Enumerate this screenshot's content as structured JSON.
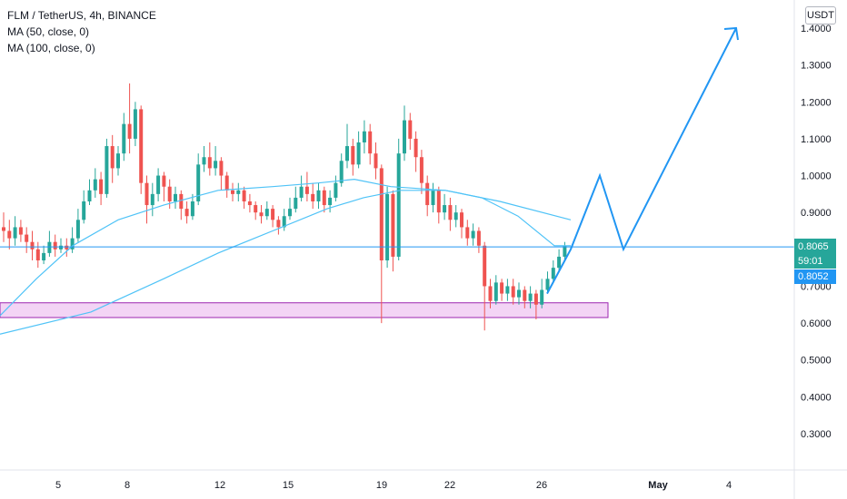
{
  "legend": {
    "symbol": "FLM / TetherUS, 4h, BINANCE",
    "ma50": "MA (50, close, 0)",
    "ma100": "MA (100, close, 0)"
  },
  "currency": "USDT",
  "price_axis": {
    "ticks": [
      "1.4000",
      "1.3000",
      "1.2000",
      "1.1000",
      "1.0000",
      "0.9000",
      "0.7000",
      "0.6000",
      "0.5000",
      "0.4000",
      "0.3000"
    ],
    "current_price": "0.8065",
    "countdown": "59:01",
    "ma_price": "0.8052"
  },
  "time_axis": {
    "ticks": [
      "5",
      "8",
      "12",
      "15",
      "19",
      "22",
      "26",
      "May",
      "4"
    ]
  },
  "colors": {
    "up": "#26a69a",
    "down": "#ef5350",
    "ma": "#4fc3f7",
    "hline": "#2196f3",
    "projection": "#2196f3",
    "zone_fill": "#f3d4f5",
    "zone_border": "#9c27b0",
    "tag_green": "#26a69a",
    "tag_blue": "#2196f3"
  },
  "chart_data": {
    "type": "candlestick",
    "xlabel": "",
    "ylabel": "",
    "ylim": [
      0.2,
      1.45
    ],
    "grid": false,
    "series": [
      {
        "name": "MA (50, close, 0)",
        "points": [
          [
            0,
            0.62
          ],
          [
            40,
            0.72
          ],
          [
            80,
            0.81
          ],
          [
            130,
            0.88
          ],
          [
            180,
            0.92
          ],
          [
            240,
            0.96
          ],
          [
            300,
            0.97
          ],
          [
            350,
            0.98
          ],
          [
            390,
            0.99
          ],
          [
            430,
            0.97
          ],
          [
            490,
            0.96
          ],
          [
            530,
            0.94
          ],
          [
            570,
            0.89
          ],
          [
            610,
            0.81
          ],
          [
            628,
            0.81
          ]
        ]
      },
      {
        "name": "MA (100, close, 0)",
        "points": [
          [
            0,
            0.57
          ],
          [
            100,
            0.63
          ],
          [
            180,
            0.72
          ],
          [
            240,
            0.79
          ],
          [
            300,
            0.85
          ],
          [
            360,
            0.91
          ],
          [
            400,
            0.94
          ],
          [
            440,
            0.96
          ],
          [
            490,
            0.96
          ],
          [
            550,
            0.93
          ],
          [
            628,
            0.88
          ]
        ]
      }
    ],
    "horizontal_line": 0.8065,
    "support_zone": [
      0.615,
      0.655
    ],
    "projection_path": [
      [
        602,
        0.68
      ],
      [
        628,
        0.8
      ],
      [
        660,
        1.0
      ],
      [
        686,
        0.8
      ],
      [
        810,
        1.4
      ]
    ],
    "candles": [
      [
        0.86,
        0.85,
        0.9,
        0.82
      ],
      [
        0.85,
        0.83,
        0.88,
        0.8
      ],
      [
        0.83,
        0.86,
        0.89,
        0.81
      ],
      [
        0.86,
        0.84,
        0.88,
        0.82
      ],
      [
        0.84,
        0.82,
        0.86,
        0.79
      ],
      [
        0.82,
        0.8,
        0.85,
        0.77
      ],
      [
        0.8,
        0.77,
        0.82,
        0.75
      ],
      [
        0.77,
        0.79,
        0.81,
        0.76
      ],
      [
        0.79,
        0.82,
        0.85,
        0.78
      ],
      [
        0.82,
        0.8,
        0.84,
        0.78
      ],
      [
        0.8,
        0.81,
        0.83,
        0.79
      ],
      [
        0.81,
        0.8,
        0.83,
        0.78
      ],
      [
        0.8,
        0.83,
        0.86,
        0.79
      ],
      [
        0.83,
        0.88,
        0.91,
        0.82
      ],
      [
        0.88,
        0.93,
        0.96,
        0.87
      ],
      [
        0.93,
        0.96,
        0.99,
        0.92
      ],
      [
        0.96,
        0.99,
        1.02,
        0.94
      ],
      [
        0.99,
        0.95,
        1.01,
        0.92
      ],
      [
        0.95,
        1.08,
        1.1,
        0.94
      ],
      [
        1.08,
        1.02,
        1.11,
        0.98
      ],
      [
        1.02,
        1.06,
        1.08,
        1.0
      ],
      [
        1.06,
        1.14,
        1.17,
        1.04
      ],
      [
        1.14,
        1.1,
        1.25,
        1.06
      ],
      [
        1.1,
        1.18,
        1.2,
        1.08
      ],
      [
        1.18,
        0.98,
        1.19,
        0.95
      ],
      [
        0.98,
        0.92,
        1.0,
        0.87
      ],
      [
        0.92,
        0.95,
        0.98,
        0.89
      ],
      [
        0.95,
        1.0,
        1.02,
        0.93
      ],
      [
        1.0,
        0.97,
        1.01,
        0.93
      ],
      [
        0.97,
        0.93,
        0.99,
        0.91
      ],
      [
        0.93,
        0.95,
        0.97,
        0.91
      ],
      [
        0.95,
        0.91,
        0.96,
        0.88
      ],
      [
        0.91,
        0.89,
        0.93,
        0.87
      ],
      [
        0.89,
        0.93,
        0.95,
        0.88
      ],
      [
        0.93,
        1.03,
        1.06,
        0.92
      ],
      [
        1.03,
        1.05,
        1.08,
        1.01
      ],
      [
        1.05,
        1.02,
        1.09,
        1.0
      ],
      [
        1.02,
        1.04,
        1.08,
        1.0
      ],
      [
        1.04,
        1.0,
        1.05,
        0.96
      ],
      [
        1.0,
        0.96,
        1.01,
        0.94
      ],
      [
        0.96,
        0.95,
        0.98,
        0.93
      ],
      [
        0.95,
        0.96,
        0.98,
        0.93
      ],
      [
        0.96,
        0.93,
        0.97,
        0.91
      ],
      [
        0.93,
        0.92,
        0.95,
        0.9
      ],
      [
        0.92,
        0.9,
        0.93,
        0.88
      ],
      [
        0.9,
        0.89,
        0.92,
        0.87
      ],
      [
        0.89,
        0.91,
        0.93,
        0.88
      ],
      [
        0.91,
        0.88,
        0.92,
        0.86
      ],
      [
        0.88,
        0.86,
        0.89,
        0.84
      ],
      [
        0.86,
        0.89,
        0.91,
        0.85
      ],
      [
        0.89,
        0.91,
        0.94,
        0.88
      ],
      [
        0.91,
        0.94,
        0.97,
        0.9
      ],
      [
        0.94,
        0.97,
        1.0,
        0.93
      ],
      [
        0.97,
        0.95,
        1.01,
        0.93
      ],
      [
        0.95,
        0.93,
        0.98,
        0.91
      ],
      [
        0.93,
        0.96,
        0.98,
        0.91
      ],
      [
        0.96,
        0.92,
        0.97,
        0.9
      ],
      [
        0.92,
        0.94,
        0.96,
        0.9
      ],
      [
        0.94,
        0.98,
        1.0,
        0.93
      ],
      [
        0.98,
        1.04,
        1.06,
        0.97
      ],
      [
        1.04,
        1.08,
        1.14,
        1.02
      ],
      [
        1.08,
        1.03,
        1.1,
        1.0
      ],
      [
        1.03,
        1.09,
        1.12,
        1.02
      ],
      [
        1.09,
        1.12,
        1.15,
        1.06
      ],
      [
        1.12,
        1.06,
        1.14,
        1.03
      ],
      [
        1.06,
        1.02,
        1.09,
        0.99
      ],
      [
        1.02,
        0.77,
        1.03,
        0.6
      ],
      [
        0.77,
        0.95,
        0.97,
        0.75
      ],
      [
        0.95,
        0.78,
        0.96,
        0.74
      ],
      [
        0.78,
        1.06,
        1.1,
        0.77
      ],
      [
        1.06,
        1.15,
        1.19,
        1.04
      ],
      [
        1.15,
        1.1,
        1.17,
        1.07
      ],
      [
        1.1,
        1.05,
        1.12,
        1.01
      ],
      [
        1.05,
        0.98,
        1.07,
        0.95
      ],
      [
        0.98,
        0.92,
        1.0,
        0.89
      ],
      [
        0.92,
        0.96,
        0.98,
        0.9
      ],
      [
        0.96,
        0.9,
        0.97,
        0.87
      ],
      [
        0.9,
        0.92,
        0.95,
        0.88
      ],
      [
        0.92,
        0.88,
        0.94,
        0.85
      ],
      [
        0.88,
        0.9,
        0.92,
        0.86
      ],
      [
        0.9,
        0.86,
        0.91,
        0.83
      ],
      [
        0.86,
        0.83,
        0.88,
        0.81
      ],
      [
        0.83,
        0.85,
        0.87,
        0.81
      ],
      [
        0.85,
        0.81,
        0.86,
        0.79
      ],
      [
        0.81,
        0.7,
        0.82,
        0.58
      ],
      [
        0.7,
        0.66,
        0.72,
        0.64
      ],
      [
        0.66,
        0.71,
        0.73,
        0.65
      ],
      [
        0.71,
        0.68,
        0.72,
        0.66
      ],
      [
        0.68,
        0.7,
        0.72,
        0.66
      ],
      [
        0.7,
        0.67,
        0.72,
        0.65
      ],
      [
        0.67,
        0.69,
        0.71,
        0.65
      ],
      [
        0.69,
        0.66,
        0.7,
        0.64
      ],
      [
        0.66,
        0.68,
        0.7,
        0.64
      ],
      [
        0.68,
        0.65,
        0.69,
        0.61
      ],
      [
        0.65,
        0.69,
        0.72,
        0.64
      ],
      [
        0.69,
        0.72,
        0.74,
        0.68
      ],
      [
        0.72,
        0.75,
        0.77,
        0.71
      ],
      [
        0.75,
        0.78,
        0.8,
        0.74
      ],
      [
        0.78,
        0.81,
        0.82,
        0.77
      ]
    ]
  }
}
